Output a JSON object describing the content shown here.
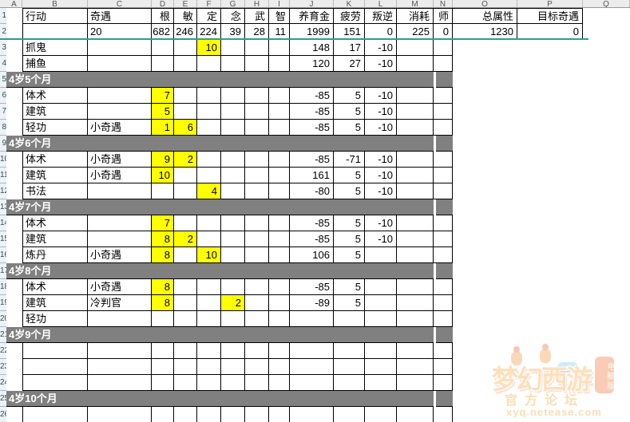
{
  "spreadsheet": {
    "column_letters": [
      "A",
      "B",
      "C",
      "D",
      "E",
      "F",
      "G",
      "H",
      "I",
      "J",
      "K",
      "L",
      "M",
      "N",
      "O",
      "P",
      "Q"
    ],
    "header_row": {
      "B": "行动",
      "C": "奇遇",
      "D": "根",
      "E": "敏",
      "F": "定",
      "G": "念",
      "H": "武",
      "I": "智",
      "J": "养育金",
      "K": "疲劳",
      "L": "叛逆",
      "M": "消耗",
      "N": "师",
      "O": "总属性",
      "P": "目标奇遇"
    },
    "totals_row": {
      "C": "20",
      "D": "682",
      "E": "246",
      "F": "224",
      "G": "39",
      "H": "28",
      "I": "11",
      "J": "1999",
      "K": "151",
      "L": "0",
      "M": "225",
      "N": "0",
      "O": "1230",
      "P": "0"
    },
    "rows": [
      {
        "type": "data",
        "cells": {
          "B": "抓鬼",
          "F": "10",
          "J": "148",
          "K": "17",
          "L": "-10"
        },
        "highlight": [
          "F"
        ]
      },
      {
        "type": "data",
        "cells": {
          "B": "捕鱼",
          "J": "120",
          "K": "27",
          "L": "-10"
        },
        "highlight": []
      },
      {
        "type": "section",
        "label": "4岁5个月"
      },
      {
        "type": "data",
        "cells": {
          "B": "体术",
          "D": "7",
          "J": "-85",
          "K": "5",
          "L": "-10"
        },
        "highlight": [
          "D"
        ]
      },
      {
        "type": "data",
        "cells": {
          "B": "建筑",
          "D": "5",
          "J": "-85",
          "K": "5",
          "L": "-10"
        },
        "highlight": [
          "D"
        ]
      },
      {
        "type": "data",
        "cells": {
          "B": "轻功",
          "C": "小奇遇",
          "D": "1",
          "E": "6",
          "J": "-85",
          "K": "5",
          "L": "-10"
        },
        "highlight": [
          "D",
          "E"
        ]
      },
      {
        "type": "section",
        "label": "4岁6个月"
      },
      {
        "type": "data",
        "cells": {
          "B": "体术",
          "C": "小奇遇",
          "D": "9",
          "E": "2",
          "J": "-85",
          "K": "-71",
          "L": "-10"
        },
        "highlight": [
          "D",
          "E"
        ]
      },
      {
        "type": "data",
        "cells": {
          "B": "建筑",
          "C": "小奇遇",
          "D": "10",
          "J": "161",
          "K": "5",
          "L": "-10"
        },
        "highlight": [
          "D"
        ]
      },
      {
        "type": "data",
        "cells": {
          "B": "书法",
          "F": "4",
          "J": "-80",
          "K": "5",
          "L": "-10"
        },
        "highlight": [
          "F"
        ]
      },
      {
        "type": "section",
        "label": "4岁7个月"
      },
      {
        "type": "data",
        "cells": {
          "B": "体术",
          "D": "7",
          "J": "-85",
          "K": "5",
          "L": "-10"
        },
        "highlight": [
          "D"
        ]
      },
      {
        "type": "data",
        "cells": {
          "B": "建筑",
          "D": "8",
          "E": "2",
          "J": "-85",
          "K": "5",
          "L": "-10"
        },
        "highlight": [
          "D",
          "E"
        ]
      },
      {
        "type": "data",
        "cells": {
          "B": "炼丹",
          "C": "小奇遇",
          "D": "8",
          "F": "10",
          "J": "106",
          "K": "5"
        },
        "highlight": [
          "D",
          "F"
        ]
      },
      {
        "type": "section",
        "label": "4岁8个月"
      },
      {
        "type": "data",
        "cells": {
          "B": "体术",
          "C": "小奇遇",
          "D": "8",
          "J": "-85",
          "K": "5"
        },
        "highlight": [
          "D"
        ]
      },
      {
        "type": "data",
        "cells": {
          "B": "建筑",
          "C": "冷判官",
          "D": "8",
          "G": "2",
          "J": "-89",
          "K": "5"
        },
        "highlight": [
          "D",
          "G"
        ]
      },
      {
        "type": "data",
        "cells": {
          "B": "轻功"
        },
        "highlight": []
      },
      {
        "type": "section",
        "label": "4岁9个月"
      },
      {
        "type": "data",
        "cells": {},
        "highlight": []
      },
      {
        "type": "data",
        "cells": {},
        "highlight": []
      },
      {
        "type": "data",
        "cells": {},
        "highlight": []
      },
      {
        "type": "section",
        "label": "4岁10个月"
      },
      {
        "type": "data",
        "cells": {},
        "highlight": []
      }
    ]
  },
  "watermark": {
    "title": "梦幻西游",
    "badge": "电脑版",
    "subtitle": "官方论坛",
    "url": "xyq.netease.com"
  },
  "colors": {
    "highlight": "#ffff00",
    "section_bg": "#808080",
    "freeze_line": "#2b9e94",
    "grid": "#000000",
    "section_text": "#ffffff"
  }
}
